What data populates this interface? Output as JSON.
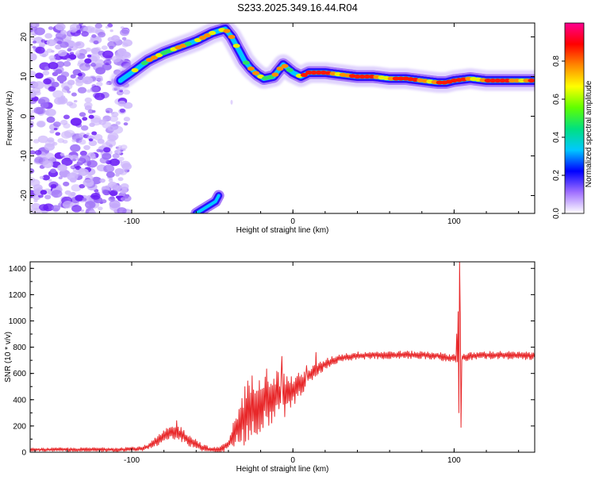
{
  "figure": {
    "title": "S233.2025.349.16.44.R04"
  },
  "chart_data": [
    {
      "type": "heatmap",
      "title": "S233.2025.349.16.44.R04",
      "xlabel": "Height of straight line (km)",
      "ylabel": "Frequency (Hz)",
      "xlim": [
        -163,
        150
      ],
      "ylim": [
        -24.5,
        23.5
      ],
      "xticks": [
        -100,
        0,
        100
      ],
      "yticks": [
        -20,
        -10,
        0,
        10,
        20
      ],
      "colorbar": {
        "label": "Normalized spectral amplitude",
        "range": [
          0,
          1
        ],
        "ticks": [
          0.0,
          0.2,
          0.4,
          0.6,
          0.8
        ],
        "colors": [
          "#ffffff",
          "#a070ff",
          "#0000ff",
          "#00c8ff",
          "#00e080",
          "#60ff00",
          "#ffff00",
          "#ff8800",
          "#ff0000",
          "#ff0090"
        ]
      },
      "ridge": {
        "x": [
          -107,
          -100,
          -90,
          -80,
          -70,
          -60,
          -50,
          -42,
          -38,
          -34,
          -30,
          -26,
          -22,
          -18,
          -12,
          -6,
          0,
          5,
          10,
          20,
          30,
          40,
          50,
          60,
          70,
          80,
          90,
          95,
          100,
          110,
          120,
          130,
          140,
          150
        ],
        "y": [
          9,
          11,
          14,
          16,
          17.5,
          19,
          21,
          22,
          20,
          17,
          14,
          12,
          10.5,
          9.5,
          10,
          13,
          11,
          10,
          11,
          11,
          10.5,
          10,
          10,
          9.5,
          9.5,
          9,
          8.5,
          8.5,
          9,
          9.5,
          9,
          9,
          9,
          9
        ]
      },
      "lower_branch": {
        "x": [
          -60,
          -56,
          -52,
          -48,
          -46
        ],
        "y": [
          -24.5,
          -23.5,
          -22.5,
          -21.5,
          -20
        ]
      },
      "noise_region": {
        "x": [
          -163,
          -102
        ],
        "y": [
          -24.5,
          23.5
        ]
      }
    },
    {
      "type": "line",
      "xlabel": "Height of straight line (km)",
      "ylabel": "SNR (10 * v/v)",
      "xlim": [
        -163,
        150
      ],
      "ylim": [
        0,
        1450
      ],
      "xticks": [
        -100,
        0,
        100
      ],
      "yticks": [
        0,
        200,
        400,
        600,
        800,
        1000,
        1200,
        1400
      ],
      "color": "#e8282a",
      "envelope": {
        "x": [
          -163,
          -110,
          -95,
          -90,
          -85,
          -80,
          -75,
          -70,
          -65,
          -60,
          -55,
          -50,
          -45,
          -40,
          -35,
          -30,
          -25,
          -20,
          -15,
          -10,
          -5,
          0,
          5,
          10,
          15,
          20,
          25,
          30,
          40,
          50,
          60,
          70,
          80,
          90,
          95,
          100,
          102,
          104,
          106,
          110,
          120,
          130,
          140,
          150
        ],
        "y": [
          20,
          20,
          25,
          40,
          80,
          120,
          150,
          140,
          100,
          60,
          30,
          20,
          18,
          60,
          180,
          280,
          350,
          400,
          420,
          430,
          440,
          470,
          520,
          580,
          630,
          670,
          700,
          720,
          735,
          740,
          740,
          742,
          740,
          735,
          720,
          720,
          700,
          720,
          720,
          730,
          740,
          740,
          735,
          735
        ]
      },
      "spread": {
        "x": [
          -163,
          -90,
          -80,
          -70,
          -60,
          -50,
          -40,
          -35,
          -30,
          -25,
          -20,
          -15,
          -10,
          -5,
          0,
          5,
          10,
          15,
          20,
          25,
          30,
          100,
          150
        ],
        "y": [
          12,
          20,
          50,
          60,
          40,
          15,
          40,
          130,
          240,
          250,
          250,
          230,
          200,
          170,
          120,
          90,
          60,
          50,
          40,
          35,
          30,
          30,
          30
        ]
      },
      "spikes": [
        {
          "x": 103.2,
          "y": 1450
        },
        {
          "x": 102.4,
          "y": 1070
        },
        {
          "x": 103.9,
          "y": 1020
        },
        {
          "x": 102.9,
          "y": 300
        },
        {
          "x": 104.4,
          "y": 190
        },
        {
          "x": 101.8,
          "y": 900
        },
        {
          "x": -72,
          "y": 240
        },
        {
          "x": 14.5,
          "y": 760
        },
        {
          "x": 8.5,
          "y": 660
        },
        {
          "x": -7,
          "y": 730
        }
      ]
    }
  ]
}
